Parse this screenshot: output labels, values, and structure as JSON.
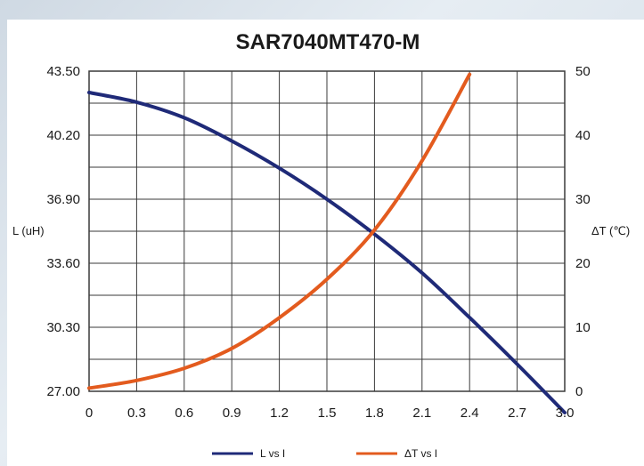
{
  "chart_data": {
    "type": "line",
    "title": "SAR7040MT470-M",
    "xlabel": "",
    "ylabel": "L (uH)",
    "y2label": "ΔT (℃)",
    "xlim": [
      0,
      3.0
    ],
    "ylim": [
      27.0,
      43.5
    ],
    "y2lim": [
      0,
      50
    ],
    "x_ticks": [
      "0",
      "0.3",
      "0.6",
      "0.9",
      "1.2",
      "1.5",
      "1.8",
      "2.1",
      "2.4",
      "2.7",
      "3.0"
    ],
    "y_ticks": [
      "43.50",
      "40.20",
      "36.90",
      "33.60",
      "30.30",
      "27.00"
    ],
    "y2_ticks": [
      "50",
      "40",
      "30",
      "20",
      "10",
      "0"
    ],
    "grid": true,
    "legend_position": "bottom",
    "series": [
      {
        "name": "L vs I",
        "axis": "left",
        "color": "#1f2a78",
        "x": [
          0,
          0.3,
          0.6,
          0.9,
          1.2,
          1.5,
          1.8,
          2.1,
          2.4,
          2.7,
          3.0
        ],
        "y": [
          42.4,
          41.9,
          41.1,
          39.9,
          38.5,
          36.9,
          35.1,
          33.1,
          30.8,
          28.4,
          25.9
        ]
      },
      {
        "name": "ΔT vs I",
        "axis": "right",
        "color": "#e35b1e",
        "x": [
          0,
          0.3,
          0.6,
          0.9,
          1.2,
          1.5,
          1.8,
          2.1,
          2.4
        ],
        "y": [
          0.5,
          1.7,
          3.6,
          6.7,
          11.5,
          17.5,
          25.2,
          36.0,
          49.5
        ]
      }
    ]
  }
}
